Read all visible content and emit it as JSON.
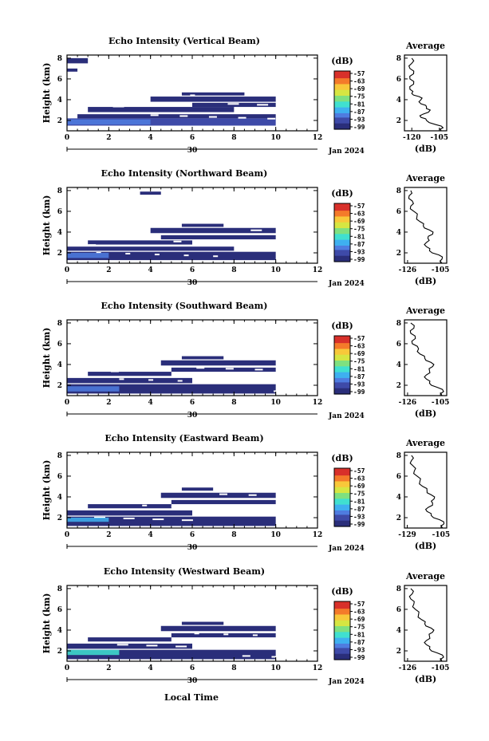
{
  "chart_data": [
    {
      "type": "heatmap",
      "title": "Echo Intensity (Vertical Beam)",
      "ylabel": "Height (km)",
      "x_ticks": [
        "0",
        "2",
        "4",
        "6",
        "8",
        "10",
        "12"
      ],
      "y_ticks": [
        "2",
        "4",
        "6",
        "8"
      ],
      "xlim": [
        0,
        12
      ],
      "ylim": [
        1,
        8.3
      ],
      "date_row": {
        "day": "30",
        "month_year": "Jan 2024"
      },
      "colorbar": {
        "label": "(dB)",
        "ticks": [
          "-57",
          "-63",
          "-69",
          "-75",
          "-81",
          "-87",
          "-93",
          "-99"
        ]
      },
      "profile": {
        "title": "Average",
        "xlabel": "(dB)",
        "x_ticks": [
          "-120",
          "-105"
        ],
        "xlim": [
          -124,
          -101
        ],
        "y_ticks": [
          "2",
          "4",
          "6",
          "8"
        ],
        "values": [
          [
            1,
            -104
          ],
          [
            1.3,
            -103
          ],
          [
            1.6,
            -107
          ],
          [
            2,
            -112
          ],
          [
            2.3,
            -115
          ],
          [
            2.6,
            -114
          ],
          [
            3,
            -110
          ],
          [
            3.3,
            -112
          ],
          [
            3.6,
            -115
          ],
          [
            4,
            -115
          ],
          [
            4.3,
            -116
          ],
          [
            4.6,
            -120
          ],
          [
            5,
            -121
          ],
          [
            5.5,
            -119
          ],
          [
            6,
            -121
          ],
          [
            6.5,
            -119
          ],
          [
            7,
            -121
          ],
          [
            7.5,
            -120
          ],
          [
            8,
            -120
          ]
        ]
      },
      "x_range_data": [
        0,
        10
      ],
      "bands": [
        {
          "y": 1.5,
          "h": 0.7,
          "x0": 0,
          "x1": 10,
          "level": "-93"
        },
        {
          "y": 2.2,
          "h": 0.4,
          "x0": 0.5,
          "x1": 10,
          "level": "-96"
        },
        {
          "y": 2.8,
          "h": 0.5,
          "x0": 1,
          "x1": 8,
          "level": "-96"
        },
        {
          "y": 3.3,
          "h": 0.4,
          "x0": 6,
          "x1": 10,
          "level": "-96"
        },
        {
          "y": 3.8,
          "h": 0.5,
          "x0": 4,
          "x1": 10,
          "level": "-96"
        },
        {
          "y": 4.4,
          "h": 0.3,
          "x0": 5.5,
          "x1": 8.5,
          "level": "-96"
        },
        {
          "y": 7.5,
          "h": 0.5,
          "x0": 0,
          "x1": 1,
          "level": "-96"
        },
        {
          "y": 6.7,
          "h": 0.3,
          "x0": 0,
          "x1": 0.5,
          "level": "-96"
        }
      ],
      "core": {
        "y": 1.6,
        "h": 0.5,
        "x0": 0,
        "x1": 4,
        "level": "-87"
      }
    },
    {
      "type": "heatmap",
      "title": "Echo Intensity (Northward Beam)",
      "ylabel": "Height (km)",
      "x_ticks": [
        "0",
        "2",
        "4",
        "6",
        "8",
        "10",
        "12"
      ],
      "y_ticks": [
        "2",
        "4",
        "6",
        "8"
      ],
      "xlim": [
        0,
        12
      ],
      "ylim": [
        1,
        8.3
      ],
      "date_row": {
        "day": "30",
        "month_year": "Jan 2024"
      },
      "colorbar": {
        "label": "(dB)",
        "ticks": [
          "-57",
          "-63",
          "-69",
          "-75",
          "-81",
          "-87",
          "-93",
          "-99"
        ]
      },
      "profile": {
        "title": "Average",
        "xlabel": "(dB)",
        "x_ticks": [
          "-126",
          "-105"
        ],
        "xlim": [
          -128,
          -101
        ],
        "y_ticks": [
          "2",
          "4",
          "6",
          "8"
        ],
        "values": [
          [
            1,
            -104
          ],
          [
            1.4,
            -104
          ],
          [
            1.8,
            -106
          ],
          [
            2.2,
            -112
          ],
          [
            2.6,
            -114
          ],
          [
            3,
            -114
          ],
          [
            3.4,
            -113
          ],
          [
            3.8,
            -110
          ],
          [
            4.2,
            -112
          ],
          [
            4.6,
            -116
          ],
          [
            5,
            -118
          ],
          [
            5.5,
            -120
          ],
          [
            6,
            -122
          ],
          [
            6.5,
            -124
          ],
          [
            7,
            -123
          ],
          [
            7.5,
            -125
          ],
          [
            8,
            -124
          ]
        ]
      },
      "x_range_data": [
        0,
        10
      ],
      "bands": [
        {
          "y": 1.3,
          "h": 0.8,
          "x0": 0,
          "x1": 10,
          "level": "-96"
        },
        {
          "y": 2.2,
          "h": 0.4,
          "x0": 0,
          "x1": 8,
          "level": "-96"
        },
        {
          "y": 2.8,
          "h": 0.4,
          "x0": 1,
          "x1": 6,
          "level": "-96"
        },
        {
          "y": 3.3,
          "h": 0.4,
          "x0": 4.5,
          "x1": 10,
          "level": "-96"
        },
        {
          "y": 3.9,
          "h": 0.5,
          "x0": 4,
          "x1": 10,
          "level": "-96"
        },
        {
          "y": 4.5,
          "h": 0.3,
          "x0": 5.5,
          "x1": 7.5,
          "level": "-96"
        },
        {
          "y": 7.6,
          "h": 0.3,
          "x0": 3.5,
          "x1": 4.5,
          "level": "-96"
        }
      ],
      "core": {
        "y": 1.5,
        "h": 0.5,
        "x0": 0,
        "x1": 2,
        "level": "-90"
      }
    },
    {
      "type": "heatmap",
      "title": "Echo Intensity (Southward Beam)",
      "ylabel": "Height (km)",
      "x_ticks": [
        "0",
        "2",
        "4",
        "6",
        "8",
        "10",
        "12"
      ],
      "y_ticks": [
        "2",
        "4",
        "6",
        "8"
      ],
      "xlim": [
        0,
        12
      ],
      "ylim": [
        1,
        8.3
      ],
      "date_row": {
        "day": "30",
        "month_year": "Jan 2024"
      },
      "colorbar": {
        "label": "(dB)",
        "ticks": [
          "-57",
          "-63",
          "-69",
          "-75",
          "-81",
          "-87",
          "-93",
          "-99"
        ]
      },
      "profile": {
        "title": "Average",
        "xlabel": "(dB)",
        "x_ticks": [
          "-126",
          "-105"
        ],
        "xlim": [
          -128,
          -101
        ],
        "y_ticks": [
          "2",
          "4",
          "6",
          "8"
        ],
        "values": [
          [
            1,
            -104
          ],
          [
            1.4,
            -103
          ],
          [
            1.8,
            -107
          ],
          [
            2.2,
            -112
          ],
          [
            2.6,
            -114
          ],
          [
            3,
            -114
          ],
          [
            3.4,
            -112
          ],
          [
            3.8,
            -110
          ],
          [
            4.2,
            -111
          ],
          [
            4.6,
            -115
          ],
          [
            5,
            -118
          ],
          [
            5.5,
            -119
          ],
          [
            6,
            -123
          ],
          [
            6.5,
            -121
          ],
          [
            7,
            -124
          ],
          [
            7.5,
            -122
          ],
          [
            8,
            -124
          ]
        ]
      },
      "x_range_data": [
        0,
        10
      ],
      "bands": [
        {
          "y": 1.2,
          "h": 0.9,
          "x0": 0,
          "x1": 10,
          "level": "-96"
        },
        {
          "y": 2.2,
          "h": 0.5,
          "x0": 0,
          "x1": 6,
          "level": "-96"
        },
        {
          "y": 2.9,
          "h": 0.4,
          "x0": 1,
          "x1": 5,
          "level": "-96"
        },
        {
          "y": 3.3,
          "h": 0.4,
          "x0": 5,
          "x1": 10,
          "level": "-96"
        },
        {
          "y": 3.9,
          "h": 0.5,
          "x0": 4.5,
          "x1": 10,
          "level": "-96"
        },
        {
          "y": 4.5,
          "h": 0.3,
          "x0": 5.5,
          "x1": 7.5,
          "level": "-96"
        }
      ],
      "core": {
        "y": 1.4,
        "h": 0.5,
        "x0": 0,
        "x1": 2.5,
        "level": "-90"
      }
    },
    {
      "type": "heatmap",
      "title": "Echo Intensity (Eastward Beam)",
      "ylabel": "Height (km)",
      "x_ticks": [
        "0",
        "2",
        "4",
        "6",
        "8",
        "10",
        "12"
      ],
      "y_ticks": [
        "2",
        "4",
        "6",
        "8"
      ],
      "xlim": [
        0,
        12
      ],
      "ylim": [
        1,
        8.3
      ],
      "date_row": {
        "day": "30",
        "month_year": "Jan 2024"
      },
      "colorbar": {
        "label": "(dB)",
        "ticks": [
          "-57",
          "-63",
          "-69",
          "-75",
          "-81",
          "-87",
          "-93",
          "-99"
        ]
      },
      "profile": {
        "title": "Average",
        "xlabel": "(dB)",
        "x_ticks": [
          "-129",
          "-105"
        ],
        "xlim": [
          -131,
          -101
        ],
        "y_ticks": [
          "2",
          "4",
          "6",
          "8"
        ],
        "values": [
          [
            1,
            -104
          ],
          [
            1.4,
            -103
          ],
          [
            1.8,
            -106
          ],
          [
            2.2,
            -112
          ],
          [
            2.6,
            -115
          ],
          [
            3,
            -114
          ],
          [
            3.4,
            -111
          ],
          [
            3.8,
            -110
          ],
          [
            4.2,
            -112
          ],
          [
            4.6,
            -115
          ],
          [
            5,
            -118
          ],
          [
            5.5,
            -120
          ],
          [
            6,
            -122
          ],
          [
            6.5,
            -124
          ],
          [
            7,
            -125
          ],
          [
            7.5,
            -126
          ],
          [
            8,
            -126
          ]
        ]
      },
      "x_range_data": [
        0,
        10
      ],
      "bands": [
        {
          "y": 1.2,
          "h": 0.9,
          "x0": 0,
          "x1": 10,
          "level": "-96"
        },
        {
          "y": 2.2,
          "h": 0.5,
          "x0": 0,
          "x1": 6,
          "level": "-96"
        },
        {
          "y": 2.9,
          "h": 0.4,
          "x0": 1,
          "x1": 5,
          "level": "-96"
        },
        {
          "y": 3.3,
          "h": 0.4,
          "x0": 5,
          "x1": 10,
          "level": "-96"
        },
        {
          "y": 3.9,
          "h": 0.5,
          "x0": 4.5,
          "x1": 10,
          "level": "-96"
        },
        {
          "y": 4.6,
          "h": 0.3,
          "x0": 5.5,
          "x1": 7,
          "level": "-96"
        }
      ],
      "core": {
        "y": 1.6,
        "h": 0.4,
        "x0": 0,
        "x1": 2,
        "level": "-84"
      }
    },
    {
      "type": "heatmap",
      "title": "Echo Intensity (Westward Beam)",
      "ylabel": "Height (km)",
      "x_ticks": [
        "0",
        "2",
        "4",
        "6",
        "8",
        "10",
        "12"
      ],
      "y_ticks": [
        "2",
        "4",
        "6",
        "8"
      ],
      "xlim": [
        0,
        12
      ],
      "ylim": [
        1,
        8.3
      ],
      "date_row": {
        "day": "30",
        "month_year": "Jan 2024"
      },
      "colorbar": {
        "label": "(dB)",
        "ticks": [
          "-57",
          "-63",
          "-69",
          "-75",
          "-81",
          "-87",
          "-93",
          "-99"
        ]
      },
      "profile": {
        "title": "Average",
        "xlabel": "(dB)",
        "x_ticks": [
          "-126",
          "-105"
        ],
        "xlim": [
          -128,
          -101
        ],
        "y_ticks": [
          "2",
          "4",
          "6",
          "8"
        ],
        "values": [
          [
            1,
            -104
          ],
          [
            1.4,
            -103
          ],
          [
            1.8,
            -107
          ],
          [
            2.2,
            -112
          ],
          [
            2.6,
            -114
          ],
          [
            3,
            -114
          ],
          [
            3.4,
            -112
          ],
          [
            3.8,
            -110
          ],
          [
            4.2,
            -111
          ],
          [
            4.6,
            -115
          ],
          [
            5,
            -117
          ],
          [
            5.5,
            -119
          ],
          [
            6,
            -121
          ],
          [
            6.5,
            -122
          ],
          [
            7,
            -124
          ],
          [
            7.5,
            -123
          ],
          [
            8,
            -124
          ]
        ]
      },
      "x_range_data": [
        0,
        10
      ],
      "bands": [
        {
          "y": 1.2,
          "h": 0.9,
          "x0": 0,
          "x1": 10,
          "level": "-96"
        },
        {
          "y": 2.2,
          "h": 0.5,
          "x0": 0,
          "x1": 6,
          "level": "-96"
        },
        {
          "y": 2.9,
          "h": 0.4,
          "x0": 1,
          "x1": 5,
          "level": "-96"
        },
        {
          "y": 3.3,
          "h": 0.4,
          "x0": 5,
          "x1": 10,
          "level": "-96"
        },
        {
          "y": 3.9,
          "h": 0.5,
          "x0": 4.5,
          "x1": 10,
          "level": "-96"
        },
        {
          "y": 4.5,
          "h": 0.3,
          "x0": 5.5,
          "x1": 7.5,
          "level": "-96"
        }
      ],
      "core": {
        "y": 1.6,
        "h": 0.5,
        "x0": 0,
        "x1": 2.5,
        "level": "-81"
      }
    }
  ],
  "colormap": [
    "#2a2e7a",
    "#3e4aa8",
    "#4f7ce0",
    "#3fb0f0",
    "#40e0d0",
    "#7fe080",
    "#d6e642",
    "#f8c83a",
    "#f47a2a",
    "#d8302a"
  ],
  "bottom_xlabel": "Local Time"
}
